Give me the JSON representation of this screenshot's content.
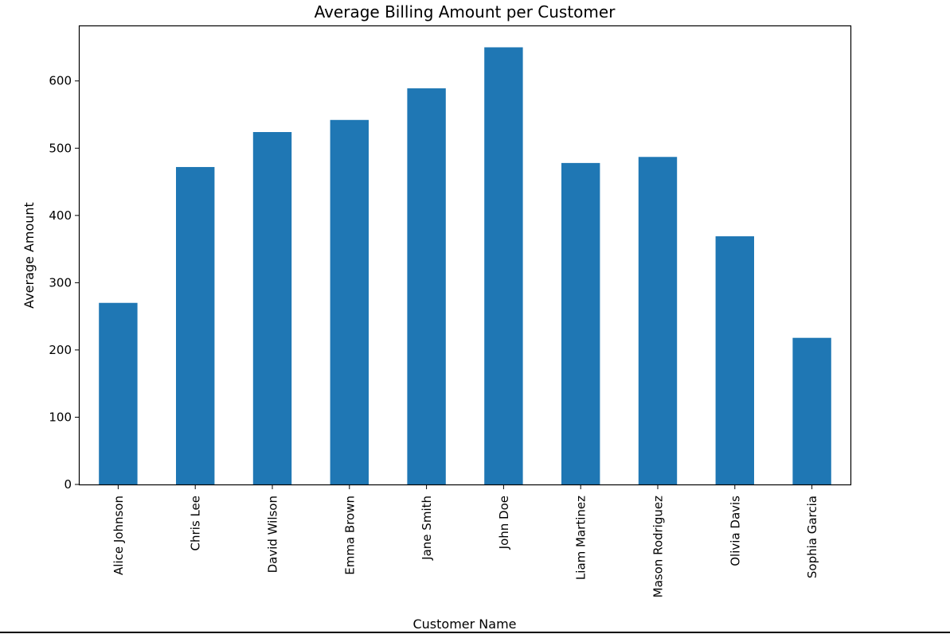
{
  "chart_data": {
    "type": "bar",
    "title": "Average Billing Amount per Customer",
    "xlabel": "Customer Name",
    "ylabel": "Average Amount",
    "categories": [
      "Alice Johnson",
      "Chris Lee",
      "David Wilson",
      "Emma Brown",
      "Jane Smith",
      "John Doe",
      "Liam Martinez",
      "Mason Rodriguez",
      "Olivia Davis",
      "Sophia Garcia"
    ],
    "values": [
      270,
      472,
      524,
      542,
      589,
      650,
      478,
      487,
      369,
      218
    ],
    "y_ticks": [
      0,
      100,
      200,
      300,
      400,
      500,
      600
    ],
    "ylim": [
      0,
      682.5
    ],
    "bar_color": "#1f77b4",
    "grid": false,
    "legend": "none"
  }
}
